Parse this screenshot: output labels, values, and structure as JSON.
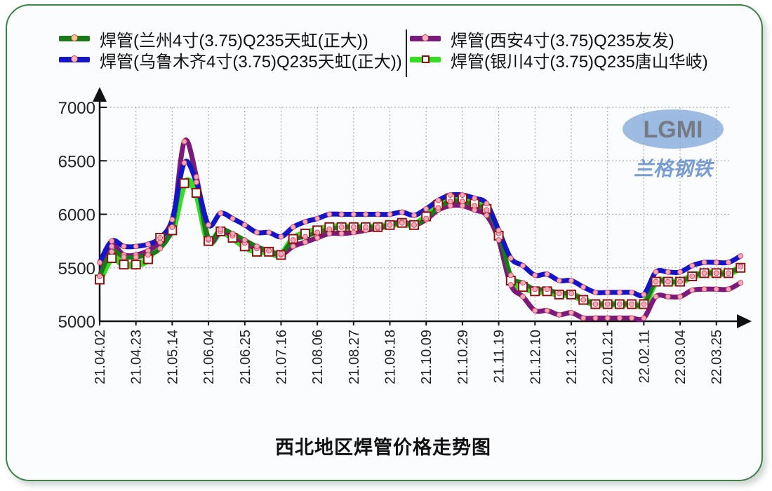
{
  "chart_data": {
    "type": "line",
    "title": "西北地区焊管价格走势图",
    "xlabel": "",
    "ylabel": "",
    "ylim": [
      5000,
      7000
    ],
    "yticks": [
      5000,
      5500,
      6000,
      6500,
      7000
    ],
    "grid": true,
    "legend_position": "top",
    "x_tick_labels": [
      "21.04.02",
      "21.04.23",
      "21.05.14",
      "21.06.04",
      "21.06.25",
      "21.07.16",
      "21.08.06",
      "21.08.27",
      "21.09.18",
      "21.10.09",
      "21.10.29",
      "21.11.19",
      "21.12.10",
      "21.12.31",
      "22.01.21",
      "22.02.11",
      "22.03.04",
      "22.03.25"
    ],
    "x_note": "weekly observations from 21.04.02 to approx. 22.04.01; tick labels every 3 weeks",
    "series": [
      {
        "name": "焊管(兰州4寸(3.75)Q235天虹(正大))",
        "color": "#1a7a1a",
        "marker": "circle",
        "values": [
          5420,
          5650,
          5600,
          5600,
          5620,
          5680,
          5880,
          6480,
          6300,
          5770,
          5860,
          5820,
          5760,
          5700,
          5660,
          5630,
          5760,
          5790,
          5830,
          5860,
          5880,
          5880,
          5880,
          5880,
          5900,
          5920,
          5900,
          5960,
          6060,
          6120,
          6120,
          6080,
          6040,
          5820,
          5430,
          5360,
          5300,
          5300,
          5260,
          5260,
          5200,
          5160,
          5160,
          5160,
          5160,
          5160,
          5370,
          5370,
          5370,
          5420,
          5450,
          5450,
          5450,
          5510
        ]
      },
      {
        "name": "焊管(乌鲁木齐4寸(3.75)Q235天虹(正大))",
        "color": "#1414c8",
        "marker": "circle",
        "values": [
          5550,
          5750,
          5700,
          5700,
          5720,
          5780,
          5950,
          6480,
          6300,
          5900,
          6010,
          5960,
          5900,
          5830,
          5830,
          5790,
          5880,
          5930,
          5960,
          6000,
          6000,
          6000,
          6000,
          6000,
          6000,
          6020,
          5990,
          6050,
          6130,
          6180,
          6180,
          6150,
          6100,
          5850,
          5590,
          5520,
          5430,
          5440,
          5380,
          5380,
          5320,
          5270,
          5270,
          5270,
          5270,
          5250,
          5460,
          5460,
          5460,
          5520,
          5550,
          5550,
          5550,
          5610
        ]
      },
      {
        "name": "焊管(西安4寸(3.75)Q235友发)",
        "color": "#7a1a7a",
        "marker": "circle",
        "values": [
          5420,
          5700,
          5620,
          5620,
          5660,
          5740,
          5880,
          6680,
          6350,
          5760,
          5840,
          5800,
          5730,
          5680,
          5660,
          5620,
          5700,
          5740,
          5780,
          5820,
          5820,
          5830,
          5850,
          5870,
          5900,
          5930,
          5900,
          5950,
          6040,
          6080,
          6080,
          6040,
          5990,
          5760,
          5340,
          5230,
          5100,
          5100,
          5060,
          5080,
          5030,
          5030,
          5030,
          5030,
          5030,
          5030,
          5230,
          5230,
          5230,
          5290,
          5300,
          5300,
          5300,
          5360
        ]
      },
      {
        "name": "焊管(银川4寸(3.75)Q235唐山华岐)",
        "color": "#33dd22",
        "marker": "square",
        "values": [
          5390,
          5590,
          5530,
          5530,
          5580,
          5780,
          5850,
          6290,
          6200,
          5750,
          5840,
          5780,
          5700,
          5650,
          5650,
          5620,
          5770,
          5820,
          5850,
          5880,
          5880,
          5880,
          5880,
          5880,
          5900,
          5920,
          5900,
          5980,
          6090,
          6150,
          6150,
          6100,
          6050,
          5800,
          5380,
          5320,
          5280,
          5280,
          5250,
          5250,
          5200,
          5160,
          5160,
          5160,
          5160,
          5160,
          5370,
          5370,
          5370,
          5420,
          5450,
          5450,
          5450,
          5500
        ]
      }
    ]
  },
  "legend": {
    "items": [
      {
        "label": "焊管(兰州4寸(3.75)Q235天虹(正大))",
        "color": "#1a7a1a"
      },
      {
        "label": "焊管(乌鲁木齐4寸(3.75)Q235天虹(正大))",
        "color": "#1414c8"
      },
      {
        "label": "焊管(西安4寸(3.75)Q235友发)",
        "color": "#7a1a7a"
      },
      {
        "label": "焊管(银川4寸(3.75)Q235唐山华岐)",
        "color": "#33dd22"
      }
    ]
  },
  "watermark": {
    "logo_text": "LGMI",
    "cn_text": "兰格钢铁"
  },
  "title": "西北地区焊管价格走势图"
}
